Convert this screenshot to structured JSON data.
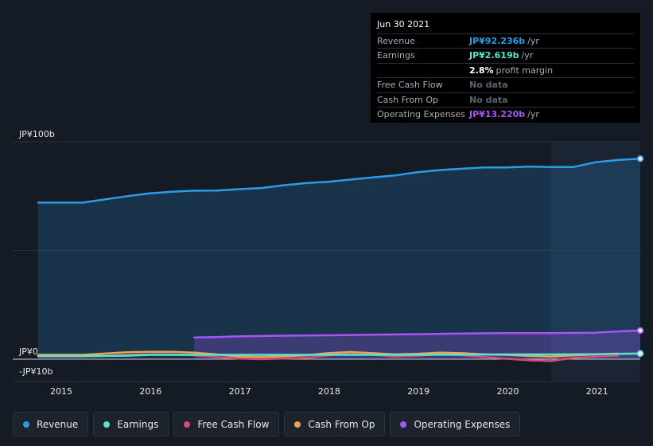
{
  "tooltip": {
    "date": "Jun 30 2021",
    "rows": [
      {
        "label": "Revenue",
        "value": "JP¥92.236b",
        "unit": "/yr",
        "color": "#2c9ce8"
      },
      {
        "label": "Earnings",
        "value": "JP¥2.619b",
        "unit": "/yr",
        "color": "#58e5d0"
      },
      {
        "label": "",
        "value": "2.8%",
        "unit": "profit margin",
        "color": "#ffffff"
      },
      {
        "label": "Free Cash Flow",
        "value": "No data",
        "unit": "",
        "color": "#5d636b"
      },
      {
        "label": "Cash From Op",
        "value": "No data",
        "unit": "",
        "color": "#5d636b"
      },
      {
        "label": "Operating Expenses",
        "value": "JP¥13.220b",
        "unit": "/yr",
        "color": "#a855f7"
      }
    ]
  },
  "legend": [
    {
      "label": "Revenue",
      "color": "#2c9ce8"
    },
    {
      "label": "Earnings",
      "color": "#58e5d0"
    },
    {
      "label": "Free Cash Flow",
      "color": "#d44a78"
    },
    {
      "label": "Cash From Op",
      "color": "#e9a64f"
    },
    {
      "label": "Operating Expenses",
      "color": "#a855f7"
    }
  ],
  "chart_data": {
    "type": "area",
    "y_tick_labels": [
      "JP¥100b",
      "JP¥0",
      "-JP¥10b"
    ],
    "y_ticks": [
      100,
      0,
      -10
    ],
    "ylim": [
      -10,
      100
    ],
    "xlim": [
      2014.6,
      2021.5
    ],
    "x_tick_labels": [
      "2015",
      "2016",
      "2017",
      "2018",
      "2019",
      "2020",
      "2021"
    ],
    "x_ticks": [
      2015,
      2016,
      2017,
      2018,
      2019,
      2020,
      2021
    ],
    "highlight_from": 2020.5,
    "series": [
      {
        "name": "Revenue",
        "color": "#2c9ce8",
        "fill": true,
        "x": [
          2014.75,
          2015.0,
          2015.25,
          2015.5,
          2015.75,
          2016.0,
          2016.25,
          2016.5,
          2016.75,
          2017.0,
          2017.25,
          2017.5,
          2017.75,
          2018.0,
          2018.25,
          2018.5,
          2018.75,
          2019.0,
          2019.25,
          2019.5,
          2019.75,
          2020.0,
          2020.25,
          2020.5,
          2020.75,
          2021.0,
          2021.25,
          2021.5
        ],
        "y": [
          72,
          72,
          72,
          73.5,
          75,
          76.3,
          77,
          77.5,
          77.6,
          78.2,
          78.7,
          80,
          81,
          81.6,
          82.6,
          83.6,
          84.5,
          86,
          87,
          87.6,
          88.2,
          88.2,
          88.6,
          88.4,
          88.4,
          90.6,
          91.6,
          92.2
        ]
      },
      {
        "name": "Operating Expenses",
        "color": "#a855f7",
        "fill": true,
        "x": [
          2016.5,
          2016.75,
          2017.0,
          2017.5,
          2018.0,
          2018.5,
          2019.0,
          2019.5,
          2020.0,
          2020.5,
          2021.0,
          2021.25,
          2021.5
        ],
        "y": [
          10,
          10.2,
          10.5,
          10.8,
          11,
          11.3,
          11.5,
          11.8,
          12,
          12,
          12.2,
          12.8,
          13.2
        ]
      },
      {
        "name": "Cash From Op",
        "color": "#e9a64f",
        "fill": false,
        "x": [
          2014.75,
          2015.0,
          2015.25,
          2015.5,
          2015.75,
          2016.0,
          2016.25,
          2016.5,
          2016.75,
          2017.0,
          2017.25,
          2017.5,
          2017.75,
          2018.0,
          2018.25,
          2018.5,
          2018.75,
          2019.0,
          2019.25,
          2019.5,
          2019.75,
          2020.0,
          2020.25,
          2020.5,
          2020.75,
          2021.0,
          2021.25
        ],
        "y": [
          2,
          2,
          2,
          2.6,
          3.2,
          3.4,
          3.4,
          3,
          2.2,
          1.2,
          1.0,
          1.3,
          1.8,
          2.8,
          3.3,
          2.8,
          2.2,
          2.5,
          3.0,
          2.8,
          2.2,
          2.0,
          1.5,
          1.2,
          1.8,
          2.2,
          2.6
        ]
      },
      {
        "name": "Free Cash Flow",
        "color": "#d44a78",
        "fill": false,
        "x": [
          2014.75,
          2015.0,
          2015.25,
          2015.5,
          2015.75,
          2016.0,
          2016.25,
          2016.5,
          2016.75,
          2017.0,
          2017.25,
          2017.5,
          2017.75,
          2018.0,
          2018.25,
          2018.5,
          2018.75,
          2019.0,
          2019.25,
          2019.5,
          2019.75,
          2020.0,
          2020.25,
          2020.5,
          2020.75,
          2021.0,
          2021.25
        ],
        "y": [
          1.2,
          1.2,
          1.2,
          1.5,
          2.0,
          2.2,
          2.2,
          1.8,
          1.0,
          0.3,
          0.0,
          0.3,
          0.6,
          1.8,
          2.4,
          2.0,
          1.2,
          1.6,
          2.2,
          1.8,
          1.0,
          0.2,
          -0.5,
          -0.8,
          0.6,
          1.2,
          1.6
        ]
      },
      {
        "name": "Earnings",
        "color": "#58e5d0",
        "fill": false,
        "x": [
          2014.75,
          2015.0,
          2015.25,
          2015.5,
          2015.75,
          2016.0,
          2016.5,
          2017.0,
          2017.5,
          2018.0,
          2018.5,
          2019.0,
          2019.5,
          2020.0,
          2020.5,
          2021.0,
          2021.5
        ],
        "y": [
          1.5,
          1.5,
          1.5,
          1.5,
          1.6,
          2.0,
          2.0,
          2.0,
          2.0,
          2.0,
          2.0,
          2.0,
          2.1,
          2.2,
          2.2,
          2.3,
          2.6
        ]
      }
    ]
  }
}
